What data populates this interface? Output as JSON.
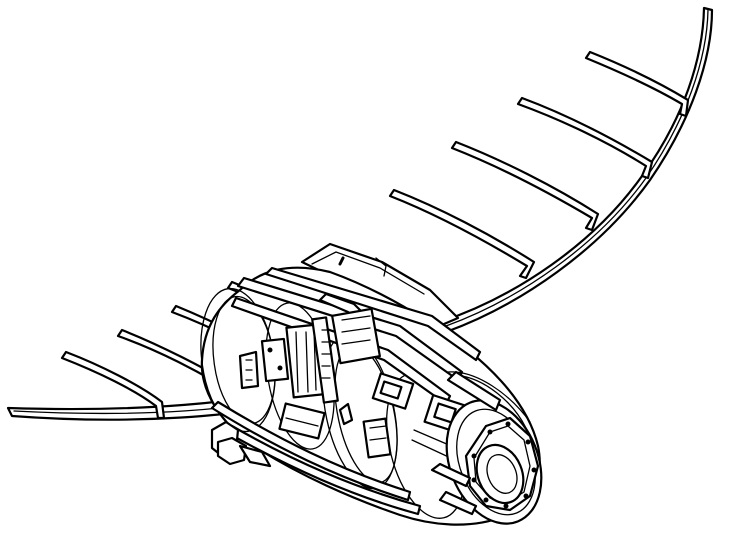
{
  "drawing": {
    "style": "black line-art technical illustration",
    "subject_icon": "ornithopter-wing-fuselage-icon",
    "colors": {
      "line": "#000000",
      "background": "#ffffff"
    }
  }
}
